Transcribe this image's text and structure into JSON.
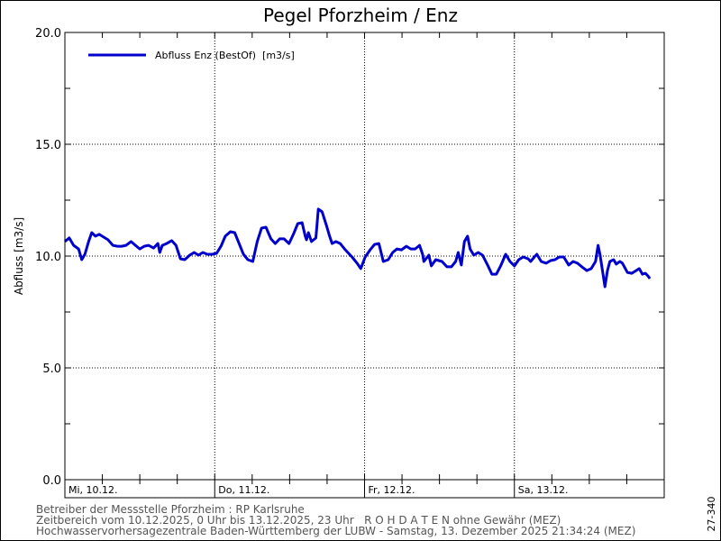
{
  "chart_data": {
    "type": "line",
    "title": "Pegel Pforzheim / Enz",
    "xlabel": "",
    "ylabel": "Abfluss [m3/s]",
    "ylim": [
      0,
      20
    ],
    "xlim_hours": [
      0,
      96
    ],
    "yticks": [
      "0.0",
      "5.0",
      "10.0",
      "15.0",
      "20.0"
    ],
    "ytick_values": [
      0,
      5,
      10,
      15,
      20
    ],
    "day_labels": [
      "Mi, 10.12.",
      "Do, 11.12.",
      "Fr, 12.12.",
      "Sa, 13.12."
    ],
    "grid": true,
    "legend": {
      "placement": "top-left",
      "label": "Abfluss Enz (BestOf)  [m3/s]"
    },
    "series": [
      {
        "name": "Abfluss Enz (BestOf)",
        "color": "#0000cc",
        "x_unit": "hours since 10.12.2025 00:00",
        "points": [
          [
            0,
            10.65
          ],
          [
            0.7,
            10.81
          ],
          [
            1.4,
            10.48
          ],
          [
            2.2,
            10.32
          ],
          [
            2.7,
            9.84
          ],
          [
            3.2,
            10.08
          ],
          [
            3.8,
            10.65
          ],
          [
            4.3,
            11.05
          ],
          [
            4.9,
            10.89
          ],
          [
            5.5,
            10.97
          ],
          [
            6.2,
            10.85
          ],
          [
            6.9,
            10.73
          ],
          [
            7.7,
            10.48
          ],
          [
            8.4,
            10.44
          ],
          [
            9.1,
            10.44
          ],
          [
            9.8,
            10.48
          ],
          [
            10.6,
            10.65
          ],
          [
            11.3,
            10.48
          ],
          [
            12.0,
            10.32
          ],
          [
            12.7,
            10.44
          ],
          [
            13.4,
            10.48
          ],
          [
            14.2,
            10.36
          ],
          [
            14.9,
            10.56
          ],
          [
            15.2,
            10.16
          ],
          [
            15.6,
            10.48
          ],
          [
            16.3,
            10.56
          ],
          [
            17.1,
            10.69
          ],
          [
            17.8,
            10.48
          ],
          [
            18.5,
            9.88
          ],
          [
            19.2,
            9.84
          ],
          [
            20.0,
            10.04
          ],
          [
            20.7,
            10.16
          ],
          [
            21.4,
            10.04
          ],
          [
            22.1,
            10.16
          ],
          [
            22.8,
            10.08
          ],
          [
            23.6,
            10.08
          ],
          [
            24.3,
            10.12
          ],
          [
            25.0,
            10.44
          ],
          [
            25.7,
            10.89
          ],
          [
            26.5,
            11.09
          ],
          [
            27.2,
            11.05
          ],
          [
            27.9,
            10.56
          ],
          [
            28.6,
            10.08
          ],
          [
            29.3,
            9.84
          ],
          [
            30.1,
            9.76
          ],
          [
            30.8,
            10.65
          ],
          [
            31.5,
            11.25
          ],
          [
            32.2,
            11.29
          ],
          [
            33.0,
            10.77
          ],
          [
            33.7,
            10.56
          ],
          [
            34.4,
            10.77
          ],
          [
            35.1,
            10.77
          ],
          [
            35.9,
            10.56
          ],
          [
            36.6,
            10.97
          ],
          [
            37.3,
            11.45
          ],
          [
            38.0,
            11.49
          ],
          [
            38.5,
            10.89
          ],
          [
            38.7,
            10.73
          ],
          [
            39.0,
            11.05
          ],
          [
            39.5,
            10.65
          ],
          [
            40.2,
            10.81
          ],
          [
            40.6,
            12.1
          ],
          [
            41.2,
            11.98
          ],
          [
            41.9,
            11.37
          ],
          [
            42.4,
            10.89
          ],
          [
            42.8,
            10.56
          ],
          [
            43.4,
            10.65
          ],
          [
            44.1,
            10.56
          ],
          [
            44.8,
            10.32
          ],
          [
            46.0,
            9.96
          ],
          [
            46.8,
            9.68
          ],
          [
            47.4,
            9.44
          ],
          [
            48.1,
            9.96
          ],
          [
            48.9,
            10.28
          ],
          [
            49.6,
            10.52
          ],
          [
            50.3,
            10.56
          ],
          [
            51.0,
            9.76
          ],
          [
            51.8,
            9.84
          ],
          [
            52.5,
            10.16
          ],
          [
            53.2,
            10.32
          ],
          [
            53.9,
            10.28
          ],
          [
            54.7,
            10.44
          ],
          [
            55.4,
            10.32
          ],
          [
            56.1,
            10.32
          ],
          [
            56.8,
            10.48
          ],
          [
            57.3,
            10.08
          ],
          [
            57.5,
            9.76
          ],
          [
            58.3,
            10.04
          ],
          [
            58.7,
            9.56
          ],
          [
            59.4,
            9.84
          ],
          [
            60.4,
            9.76
          ],
          [
            61.2,
            9.52
          ],
          [
            61.9,
            9.52
          ],
          [
            62.6,
            9.76
          ],
          [
            63.0,
            10.16
          ],
          [
            63.5,
            9.6
          ],
          [
            64.0,
            10.65
          ],
          [
            64.5,
            10.89
          ],
          [
            64.9,
            10.32
          ],
          [
            65.5,
            10.04
          ],
          [
            66.2,
            10.16
          ],
          [
            66.9,
            10.04
          ],
          [
            67.7,
            9.6
          ],
          [
            68.4,
            9.19
          ],
          [
            69.1,
            9.19
          ],
          [
            69.8,
            9.56
          ],
          [
            70.6,
            10.08
          ],
          [
            71.3,
            9.76
          ],
          [
            72.0,
            9.56
          ],
          [
            72.7,
            9.84
          ],
          [
            73.4,
            9.96
          ],
          [
            74.2,
            9.88
          ],
          [
            74.6,
            9.76
          ],
          [
            75.2,
            9.96
          ],
          [
            75.6,
            10.08
          ],
          [
            76.3,
            9.76
          ],
          [
            77.1,
            9.68
          ],
          [
            77.8,
            9.8
          ],
          [
            78.5,
            9.84
          ],
          [
            79.2,
            9.96
          ],
          [
            79.9,
            9.96
          ],
          [
            80.7,
            9.6
          ],
          [
            81.4,
            9.76
          ],
          [
            82.1,
            9.68
          ],
          [
            82.8,
            9.52
          ],
          [
            83.6,
            9.35
          ],
          [
            84.3,
            9.44
          ],
          [
            85.0,
            9.76
          ],
          [
            85.4,
            10.48
          ],
          [
            85.7,
            10.08
          ],
          [
            86.2,
            9.19
          ],
          [
            86.5,
            8.63
          ],
          [
            86.9,
            9.35
          ],
          [
            87.3,
            9.76
          ],
          [
            87.9,
            9.84
          ],
          [
            88.3,
            9.64
          ],
          [
            88.9,
            9.76
          ],
          [
            89.3,
            9.68
          ],
          [
            90.1,
            9.27
          ],
          [
            90.8,
            9.23
          ],
          [
            91.5,
            9.35
          ],
          [
            92.0,
            9.44
          ],
          [
            92.5,
            9.19
          ],
          [
            93.0,
            9.23
          ],
          [
            93.4,
            9.11
          ],
          [
            93.7,
            8.99
          ]
        ]
      }
    ]
  },
  "side_code": "27-340",
  "footer": {
    "line1": "Betreiber der Messstelle Pforzheim : RP Karlsruhe",
    "line2": "Zeitbereich vom 10.12.2025, 0 Uhr bis 13.12.2025, 23 Uhr   R O H D A T E N ohne Gewähr (MEZ)",
    "line3": "Hochwasservorhersagezentrale Baden-Württemberg der LUBW - Samstag, 13. Dezember 2025 21:34:24 (MEZ)"
  }
}
